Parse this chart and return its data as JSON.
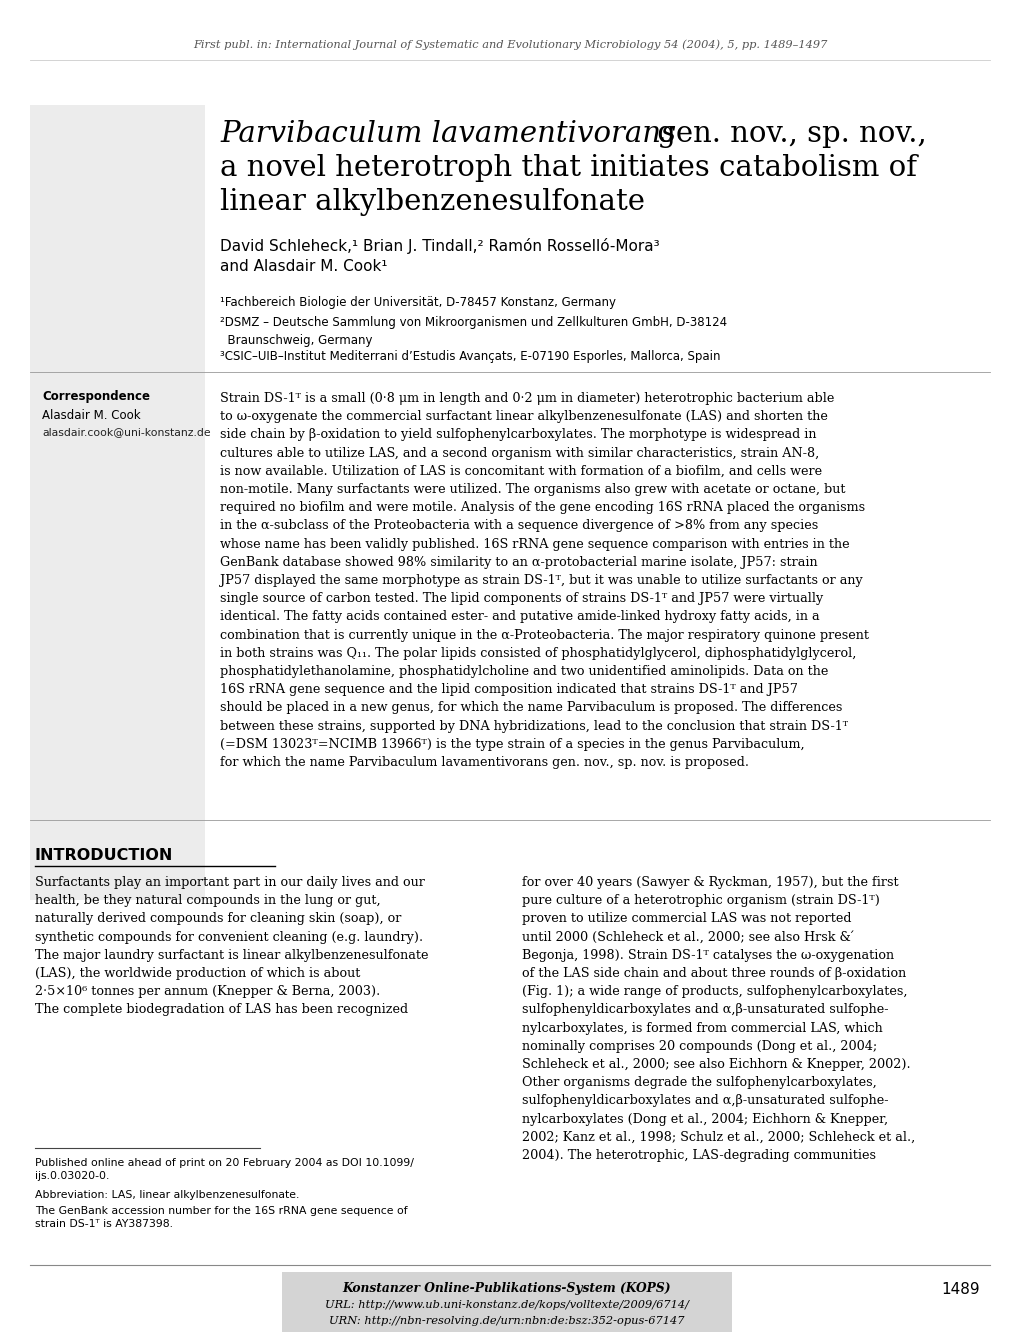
{
  "header_text": "First publ. in: International Journal of Systematic and Evolutionary Microbiology 54 (2004), 5, pp. 1489–1497",
  "correspondence_label": "Correspondence",
  "correspondence_name": "Alasdair M. Cook",
  "correspondence_email": "alasdair.cook@uni-konstanz.de",
  "affil1": "¹Fachbereich Biologie der Universität, D-78457 Konstanz, Germany",
  "affil2": "²DSMZ – Deutsche Sammlung von Mikroorganismen und Zellkulturen GmbH, D-38124\n  Braunschweig, Germany",
  "affil3": "³CSIC–UIB–Institut Mediterrani d’Estudis Avançats, E-07190 Esporles, Mallorca, Spain",
  "abstract_text": "Strain DS-1ᵀ is a small (0·8 μm in length and 0·2 μm in diameter) heterotrophic bacterium able\nto ω-oxygenate the commercial surfactant linear alkylbenzenesulfonate (LAS) and shorten the\nside chain by β-oxidation to yield sulfophenylcarboxylates. The morphotype is widespread in\ncultures able to utilize LAS, and a second organism with similar characteristics, strain AN-8,\nis now available. Utilization of LAS is concomitant with formation of a biofilm, and cells were\nnon-motile. Many surfactants were utilized. The organisms also grew with acetate or octane, but\nrequired no biofilm and were motile. Analysis of the gene encoding 16S rRNA placed the organisms\nin the α-subclass of the Proteobacteria with a sequence divergence of >8% from any species\nwhose name has been validly published. 16S rRNA gene sequence comparison with entries in the\nGenBank database showed 98% similarity to an α-protobacterial marine isolate, JP57: strain\nJP57 displayed the same morphotype as strain DS-1ᵀ, but it was unable to utilize surfactants or any\nsingle source of carbon tested. The lipid components of strains DS-1ᵀ and JP57 were virtually\nidentical. The fatty acids contained ester- and putative amide-linked hydroxy fatty acids, in a\ncombination that is currently unique in the α-Proteobacteria. The major respiratory quinone present\nin both strains was Q₁₁. The polar lipids consisted of phosphatidylglycerol, diphosphatidylglycerol,\nphosphatidylethanolamine, phosphatidylcholine and two unidentified aminolipids. Data on the\n16S rRNA gene sequence and the lipid composition indicated that strains DS-1ᵀ and JP57\nshould be placed in a new genus, for which the name Parvibaculum is proposed. The differences\nbetween these strains, supported by DNA hybridizations, lead to the conclusion that strain DS-1ᵀ\n(=DSM 13023ᵀ=NCIMB 13966ᵀ) is the type strain of a species in the genus Parvibaculum,\nfor which the name Parvibaculum lavamentivorans gen. nov., sp. nov. is proposed.",
  "intro_title": "INTRODUCTION",
  "intro_left": "Surfactants play an important part in our daily lives and our\nhealth, be they natural compounds in the lung or gut,\nnaturally derived compounds for cleaning skin (soap), or\nsynthetic compounds for convenient cleaning (e.g. laundry).\nThe major laundry surfactant is linear alkylbenzenesulfonate\n(LAS), the worldwide production of which is about\n2·5×10⁶ tonnes per annum (Knepper & Berna, 2003).\nThe complete biodegradation of LAS has been recognized",
  "intro_right": "for over 40 years (Sawyer & Ryckman, 1957), but the first\npure culture of a heterotrophic organism (strain DS-1ᵀ)\nproven to utilize commercial LAS was not reported\nuntil 2000 (Schleheck et al., 2000; see also Hrsk & ́\nBegonja, 1998). Strain DS-1ᵀ catalyses the ω-oxygenation\nof the LAS side chain and about three rounds of β-oxidation\n(Fig. 1); a wide range of products, sulfophenylcarboxylates,\nsulfophenyldicarboxylates and α,β-unsaturated sulfophe-\nnylcarboxylates, is formed from commercial LAS, which\nnominally comprises 20 compounds (Dong et al., 2004;\nSchleheck et al., 2000; see also Eichhorn & Knepper, 2002).\nOther organisms degrade the sulfophenylcarboxylates,\nsulfophenyldicarboxylates and α,β-unsaturated sulfophe-\nnylcarboxylates (Dong et al., 2004; Eichhorn & Knepper,\n2002; Kanz et al., 1998; Schulz et al., 2000; Schleheck et al.,\n2004). The heterotrophic, LAS-degrading communities",
  "footnote1": "Published online ahead of print on 20 February 2004 as DOI 10.1099/\nijs.0.03020-0.",
  "footnote2": "Abbreviation: LAS, linear alkylbenzenesulfonate.",
  "footnote3": "The GenBank accession number for the 16S rRNA gene sequence of\nstrain DS-1ᵀ is AY387398.",
  "footer_kops": "Konstanzer Online-Publikations-System (KOPS)",
  "footer_url": "URL: http://www.ub.uni-konstanz.de/kops/volltexte/2009/6714/",
  "footer_urn": "URN: http://nbn-resolving.de/urn:nbn:de:bsz:352-opus-67147",
  "page_number": "1489",
  "bg_color": "#ffffff",
  "sidebar_color": "#ececec",
  "footer_box_color": "#d4d4d4",
  "text_color": "#000000"
}
